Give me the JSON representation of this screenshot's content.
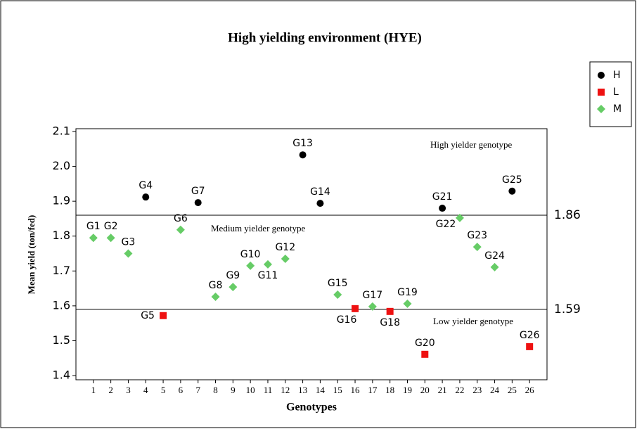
{
  "chart_data": {
    "type": "scatter",
    "title": "High yielding environment (HYE)",
    "xlabel": "Genotypes",
    "ylabel": "Mean yield (ton/fed)",
    "xlim": [
      0,
      27
    ],
    "ylim": [
      1.388,
      2.108
    ],
    "xticks": [
      1,
      2,
      3,
      4,
      5,
      6,
      7,
      8,
      9,
      10,
      11,
      12,
      13,
      14,
      15,
      16,
      17,
      18,
      19,
      20,
      21,
      22,
      23,
      24,
      25,
      26
    ],
    "yticks": [
      1.4,
      1.5,
      1.6,
      1.7,
      1.8,
      1.9,
      {
        "value": 2,
        "label": "2.0"
      },
      2.1
    ],
    "hlines": [
      1.86,
      1.59
    ],
    "annotations": [
      "High yielder genotype",
      "Medium yielder genotype",
      "Low yielder genotype"
    ],
    "legend": "upper right",
    "series": [
      {
        "name": "H",
        "color": "#000000",
        "marker": "circle",
        "x": [
          4,
          7,
          13,
          14,
          21,
          25
        ],
        "values": [
          1.912,
          1.896,
          2.033,
          1.894,
          1.88,
          1.929
        ],
        "labels": [
          "G4",
          "G7",
          "G13",
          "G14",
          "G21",
          "G25"
        ]
      },
      {
        "name": "L",
        "color": "#ee1111",
        "marker": "square",
        "x": [
          5,
          16,
          18,
          20,
          26
        ],
        "values": [
          1.572,
          1.592,
          1.584,
          1.461,
          1.483
        ],
        "labels": [
          "G5",
          "G16",
          "G18",
          "G20",
          "G26"
        ]
      },
      {
        "name": "M",
        "color": "#66cc66",
        "marker": "diamond",
        "x": [
          1,
          2,
          3,
          6,
          8,
          9,
          10,
          11,
          12,
          15,
          17,
          19,
          22,
          23,
          24
        ],
        "values": [
          1.795,
          1.795,
          1.75,
          1.818,
          1.626,
          1.654,
          1.715,
          1.719,
          1.735,
          1.632,
          1.598,
          1.606,
          1.852,
          1.769,
          1.711
        ],
        "labels": [
          "G1",
          "G2",
          "G3",
          "G6",
          "G8",
          "G9",
          "G10",
          "G11",
          "G12",
          "G15",
          "G17",
          "G19",
          "G22",
          "G23",
          "G24"
        ]
      }
    ]
  }
}
